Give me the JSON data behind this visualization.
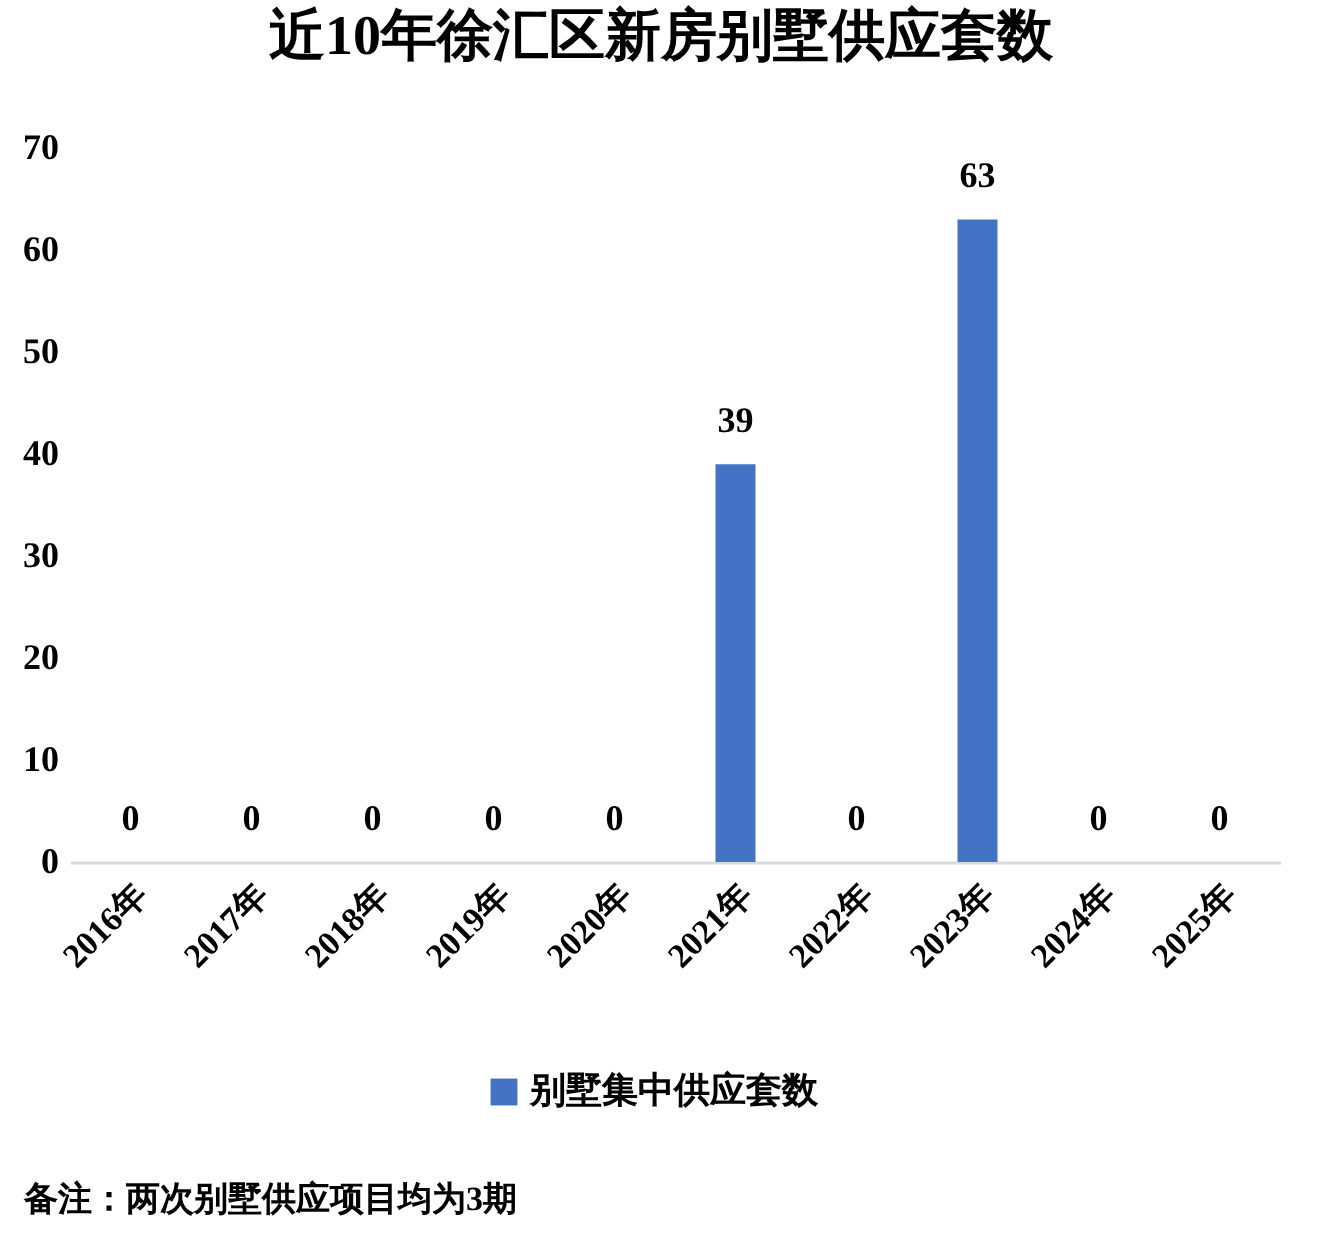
{
  "chart_data": {
    "type": "bar",
    "title": "近10年徐汇区新房别墅供应套数",
    "categories": [
      "2016年",
      "2017年",
      "2018年",
      "2019年",
      "2020年",
      "2021年",
      "2022年",
      "2023年",
      "2024年",
      "2025年"
    ],
    "series": [
      {
        "name": "别墅集中供应套数",
        "color": "#4472c4",
        "values": [
          0,
          0,
          0,
          0,
          0,
          39,
          0,
          63,
          0,
          0
        ]
      }
    ],
    "ylim": [
      0,
      70
    ],
    "yticks": [
      0,
      10,
      20,
      30,
      40,
      50,
      60,
      70
    ],
    "grid": false,
    "legend": "bottom",
    "data_labels": true,
    "annotations": [
      "备注：两次别墅供应项目均为3期"
    ]
  }
}
